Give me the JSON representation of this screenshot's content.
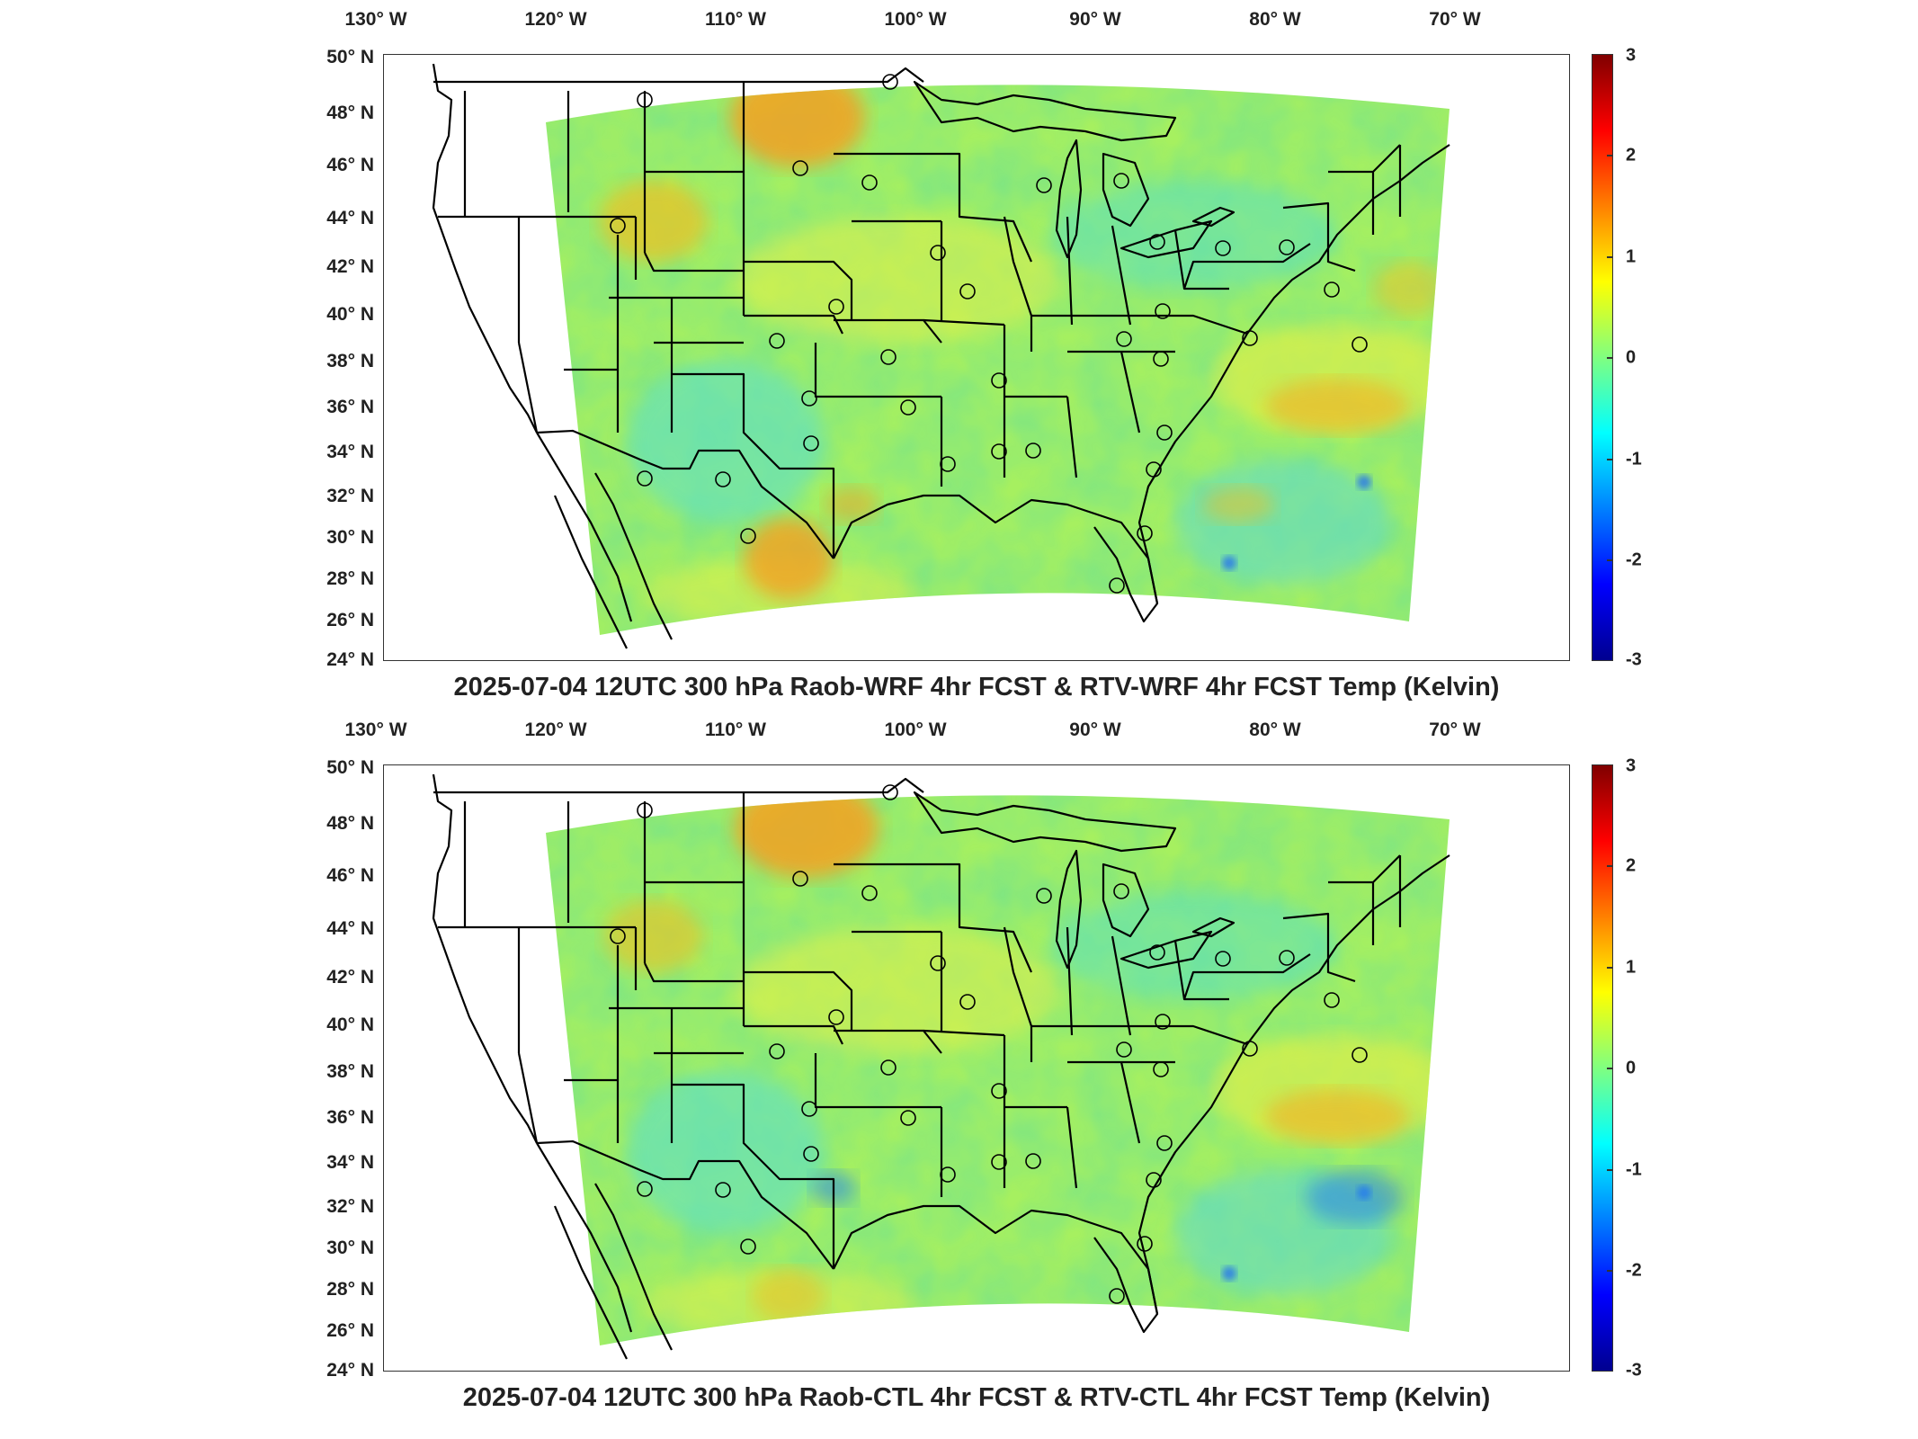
{
  "panels": [
    {
      "id": "top",
      "title": "2025-07-04 12UTC 300 hPa Raob-WRF 4hr FCST & RTV-WRF 4hr FCST Temp (Kelvin)",
      "lon_labels": [
        "130° W",
        "120° W",
        "110° W",
        "100° W",
        "90° W",
        "80° W",
        "70° W"
      ],
      "lat_labels": [
        "50° N",
        "48° N",
        "46° N",
        "44° N",
        "42° N",
        "40° N",
        "38° N",
        "36° N",
        "34° N",
        "32° N",
        "30° N",
        "28° N",
        "26° N",
        "24° N"
      ],
      "colorbar_ticks": [
        "3",
        "2",
        "1",
        "0",
        "-1",
        "-2",
        "-3"
      ]
    },
    {
      "id": "bottom",
      "title": "2025-07-04 12UTC 300 hPa Raob-CTL 4hr FCST & RTV-CTL 4hr FCST Temp (Kelvin)",
      "lon_labels": [
        "130° W",
        "120° W",
        "110° W",
        "100° W",
        "90° W",
        "80° W",
        "70° W"
      ],
      "lat_labels": [
        "50° N",
        "48° N",
        "46° N",
        "44° N",
        "42° N",
        "40° N",
        "38° N",
        "36° N",
        "34° N",
        "32° N",
        "30° N",
        "28° N",
        "26° N",
        "24° N"
      ],
      "colorbar_ticks": [
        "3",
        "2",
        "1",
        "0",
        "-1",
        "-2",
        "-3"
      ]
    }
  ],
  "colormap": [
    "#00008f",
    "#0000ff",
    "#0080ff",
    "#00ffff",
    "#80ff80",
    "#ffff00",
    "#ff8000",
    "#ff0000",
    "#800000"
  ],
  "colorbar_range": [
    -3,
    3
  ],
  "units": "Kelvin"
}
